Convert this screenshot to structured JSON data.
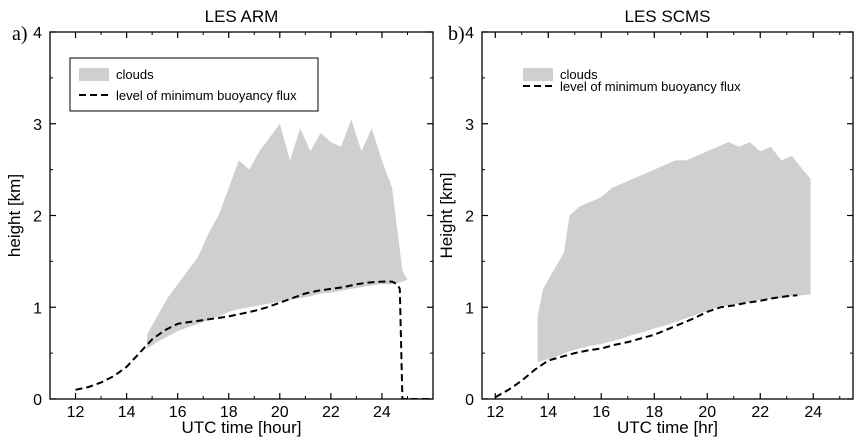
{
  "chart_data": [
    {
      "type": "area",
      "panel_label": "a)",
      "title": "LES ARM",
      "xlabel": "UTC time [hour]",
      "ylabel": "height [km]",
      "xlim": [
        11,
        26
      ],
      "ylim": [
        0,
        4
      ],
      "xticks": [
        12,
        14,
        16,
        18,
        20,
        22,
        24
      ],
      "xtick_labels": [
        "12",
        "14",
        "16",
        "18",
        "20",
        "22",
        "24"
      ],
      "yticks": [
        0,
        1,
        2,
        3,
        4
      ],
      "ytick_labels": [
        "0",
        "1",
        "2",
        "3",
        "4"
      ],
      "grid": false,
      "legend_position": "top-left",
      "legend": [
        "clouds",
        "level of minimum buoyancy flux"
      ],
      "series": [
        {
          "name": "clouds",
          "kind": "shaded-range",
          "color": "#cfcfcf",
          "x": [
            14.8,
            15.2,
            15.6,
            16.0,
            16.4,
            16.8,
            17.2,
            17.6,
            18.0,
            18.4,
            18.8,
            19.2,
            19.6,
            20.0,
            20.4,
            20.8,
            21.2,
            21.6,
            22.0,
            22.4,
            22.8,
            23.2,
            23.6,
            24.0,
            24.4,
            24.8,
            25.0
          ],
          "bottom": [
            0.55,
            0.62,
            0.68,
            0.74,
            0.78,
            0.82,
            0.86,
            0.9,
            0.95,
            0.98,
            1.0,
            1.02,
            1.04,
            1.06,
            1.08,
            1.1,
            1.12,
            1.15,
            1.16,
            1.18,
            1.2,
            1.22,
            1.24,
            1.25,
            1.25,
            1.28,
            1.3
          ],
          "top": [
            0.7,
            0.9,
            1.1,
            1.25,
            1.4,
            1.55,
            1.8,
            2.0,
            2.3,
            2.6,
            2.5,
            2.7,
            2.85,
            3.0,
            2.6,
            2.95,
            2.7,
            2.9,
            2.8,
            2.75,
            3.05,
            2.7,
            2.95,
            2.6,
            2.3,
            1.4,
            1.3
          ]
        },
        {
          "name": "level of minimum buoyancy flux",
          "kind": "line",
          "color": "#000000",
          "style": "dashed",
          "x": [
            12.0,
            12.5,
            13.0,
            13.5,
            14.0,
            14.5,
            15.0,
            15.5,
            16.0,
            16.5,
            17.0,
            17.5,
            18.0,
            18.5,
            19.0,
            19.5,
            20.0,
            20.5,
            21.0,
            21.5,
            22.0,
            22.5,
            23.0,
            23.5,
            24.0,
            24.4,
            24.6,
            24.7,
            24.75,
            24.8,
            25.5,
            26.0
          ],
          "y": [
            0.1,
            0.13,
            0.18,
            0.25,
            0.35,
            0.5,
            0.65,
            0.75,
            0.82,
            0.84,
            0.86,
            0.88,
            0.9,
            0.93,
            0.96,
            1.0,
            1.05,
            1.1,
            1.15,
            1.18,
            1.2,
            1.22,
            1.25,
            1.27,
            1.28,
            1.28,
            1.25,
            1.2,
            0.6,
            0.0,
            0.0,
            0.0
          ]
        }
      ]
    },
    {
      "type": "area",
      "panel_label": "b)",
      "title": "LES SCMS",
      "xlabel": "UTC time [hr]",
      "ylabel": "Height [km]",
      "xlim": [
        11.5,
        25.5
      ],
      "ylim": [
        0,
        4
      ],
      "xticks": [
        12,
        14,
        16,
        18,
        20,
        22,
        24
      ],
      "xtick_labels": [
        "12",
        "14",
        "16",
        "18",
        "20",
        "22",
        "24"
      ],
      "yticks": [
        0,
        1,
        2,
        3,
        4
      ],
      "ytick_labels": [
        "0",
        "1",
        "2",
        "3",
        "4"
      ],
      "grid": false,
      "legend_position": "top-left",
      "legend": [
        "clouds",
        "level of minimum buoyancy flux"
      ],
      "series": [
        {
          "name": "clouds",
          "kind": "shaded-range",
          "color": "#cfcfcf",
          "x": [
            13.6,
            13.8,
            14.2,
            14.6,
            14.8,
            15.2,
            15.6,
            16.0,
            16.4,
            16.8,
            17.2,
            17.6,
            18.0,
            18.4,
            18.8,
            19.2,
            19.6,
            20.0,
            20.4,
            20.8,
            21.2,
            21.6,
            22.0,
            22.4,
            22.8,
            23.2,
            23.6,
            23.9
          ],
          "bottom": [
            0.4,
            0.42,
            0.45,
            0.5,
            0.52,
            0.55,
            0.58,
            0.6,
            0.63,
            0.66,
            0.7,
            0.73,
            0.77,
            0.8,
            0.84,
            0.88,
            0.92,
            0.96,
            1.0,
            1.02,
            1.04,
            1.06,
            1.08,
            1.09,
            1.1,
            1.12,
            1.13,
            1.14
          ],
          "top": [
            0.9,
            1.2,
            1.4,
            1.6,
            2.0,
            2.1,
            2.15,
            2.2,
            2.3,
            2.35,
            2.4,
            2.45,
            2.5,
            2.55,
            2.6,
            2.6,
            2.65,
            2.7,
            2.75,
            2.8,
            2.75,
            2.8,
            2.7,
            2.75,
            2.6,
            2.65,
            2.5,
            2.4
          ]
        },
        {
          "name": "level of minimum buoyancy flux",
          "kind": "line",
          "color": "#000000",
          "style": "dashed",
          "x": [
            12.0,
            12.5,
            13.0,
            13.5,
            14.0,
            14.5,
            15.0,
            15.5,
            16.0,
            16.5,
            17.0,
            17.5,
            18.0,
            18.5,
            19.0,
            19.5,
            20.0,
            20.5,
            21.0,
            21.5,
            22.0,
            22.5,
            23.0,
            23.4
          ],
          "y": [
            0.02,
            0.1,
            0.2,
            0.32,
            0.42,
            0.46,
            0.5,
            0.53,
            0.55,
            0.59,
            0.62,
            0.66,
            0.7,
            0.76,
            0.82,
            0.88,
            0.95,
            1.0,
            1.02,
            1.05,
            1.07,
            1.1,
            1.12,
            1.13
          ]
        }
      ]
    }
  ]
}
